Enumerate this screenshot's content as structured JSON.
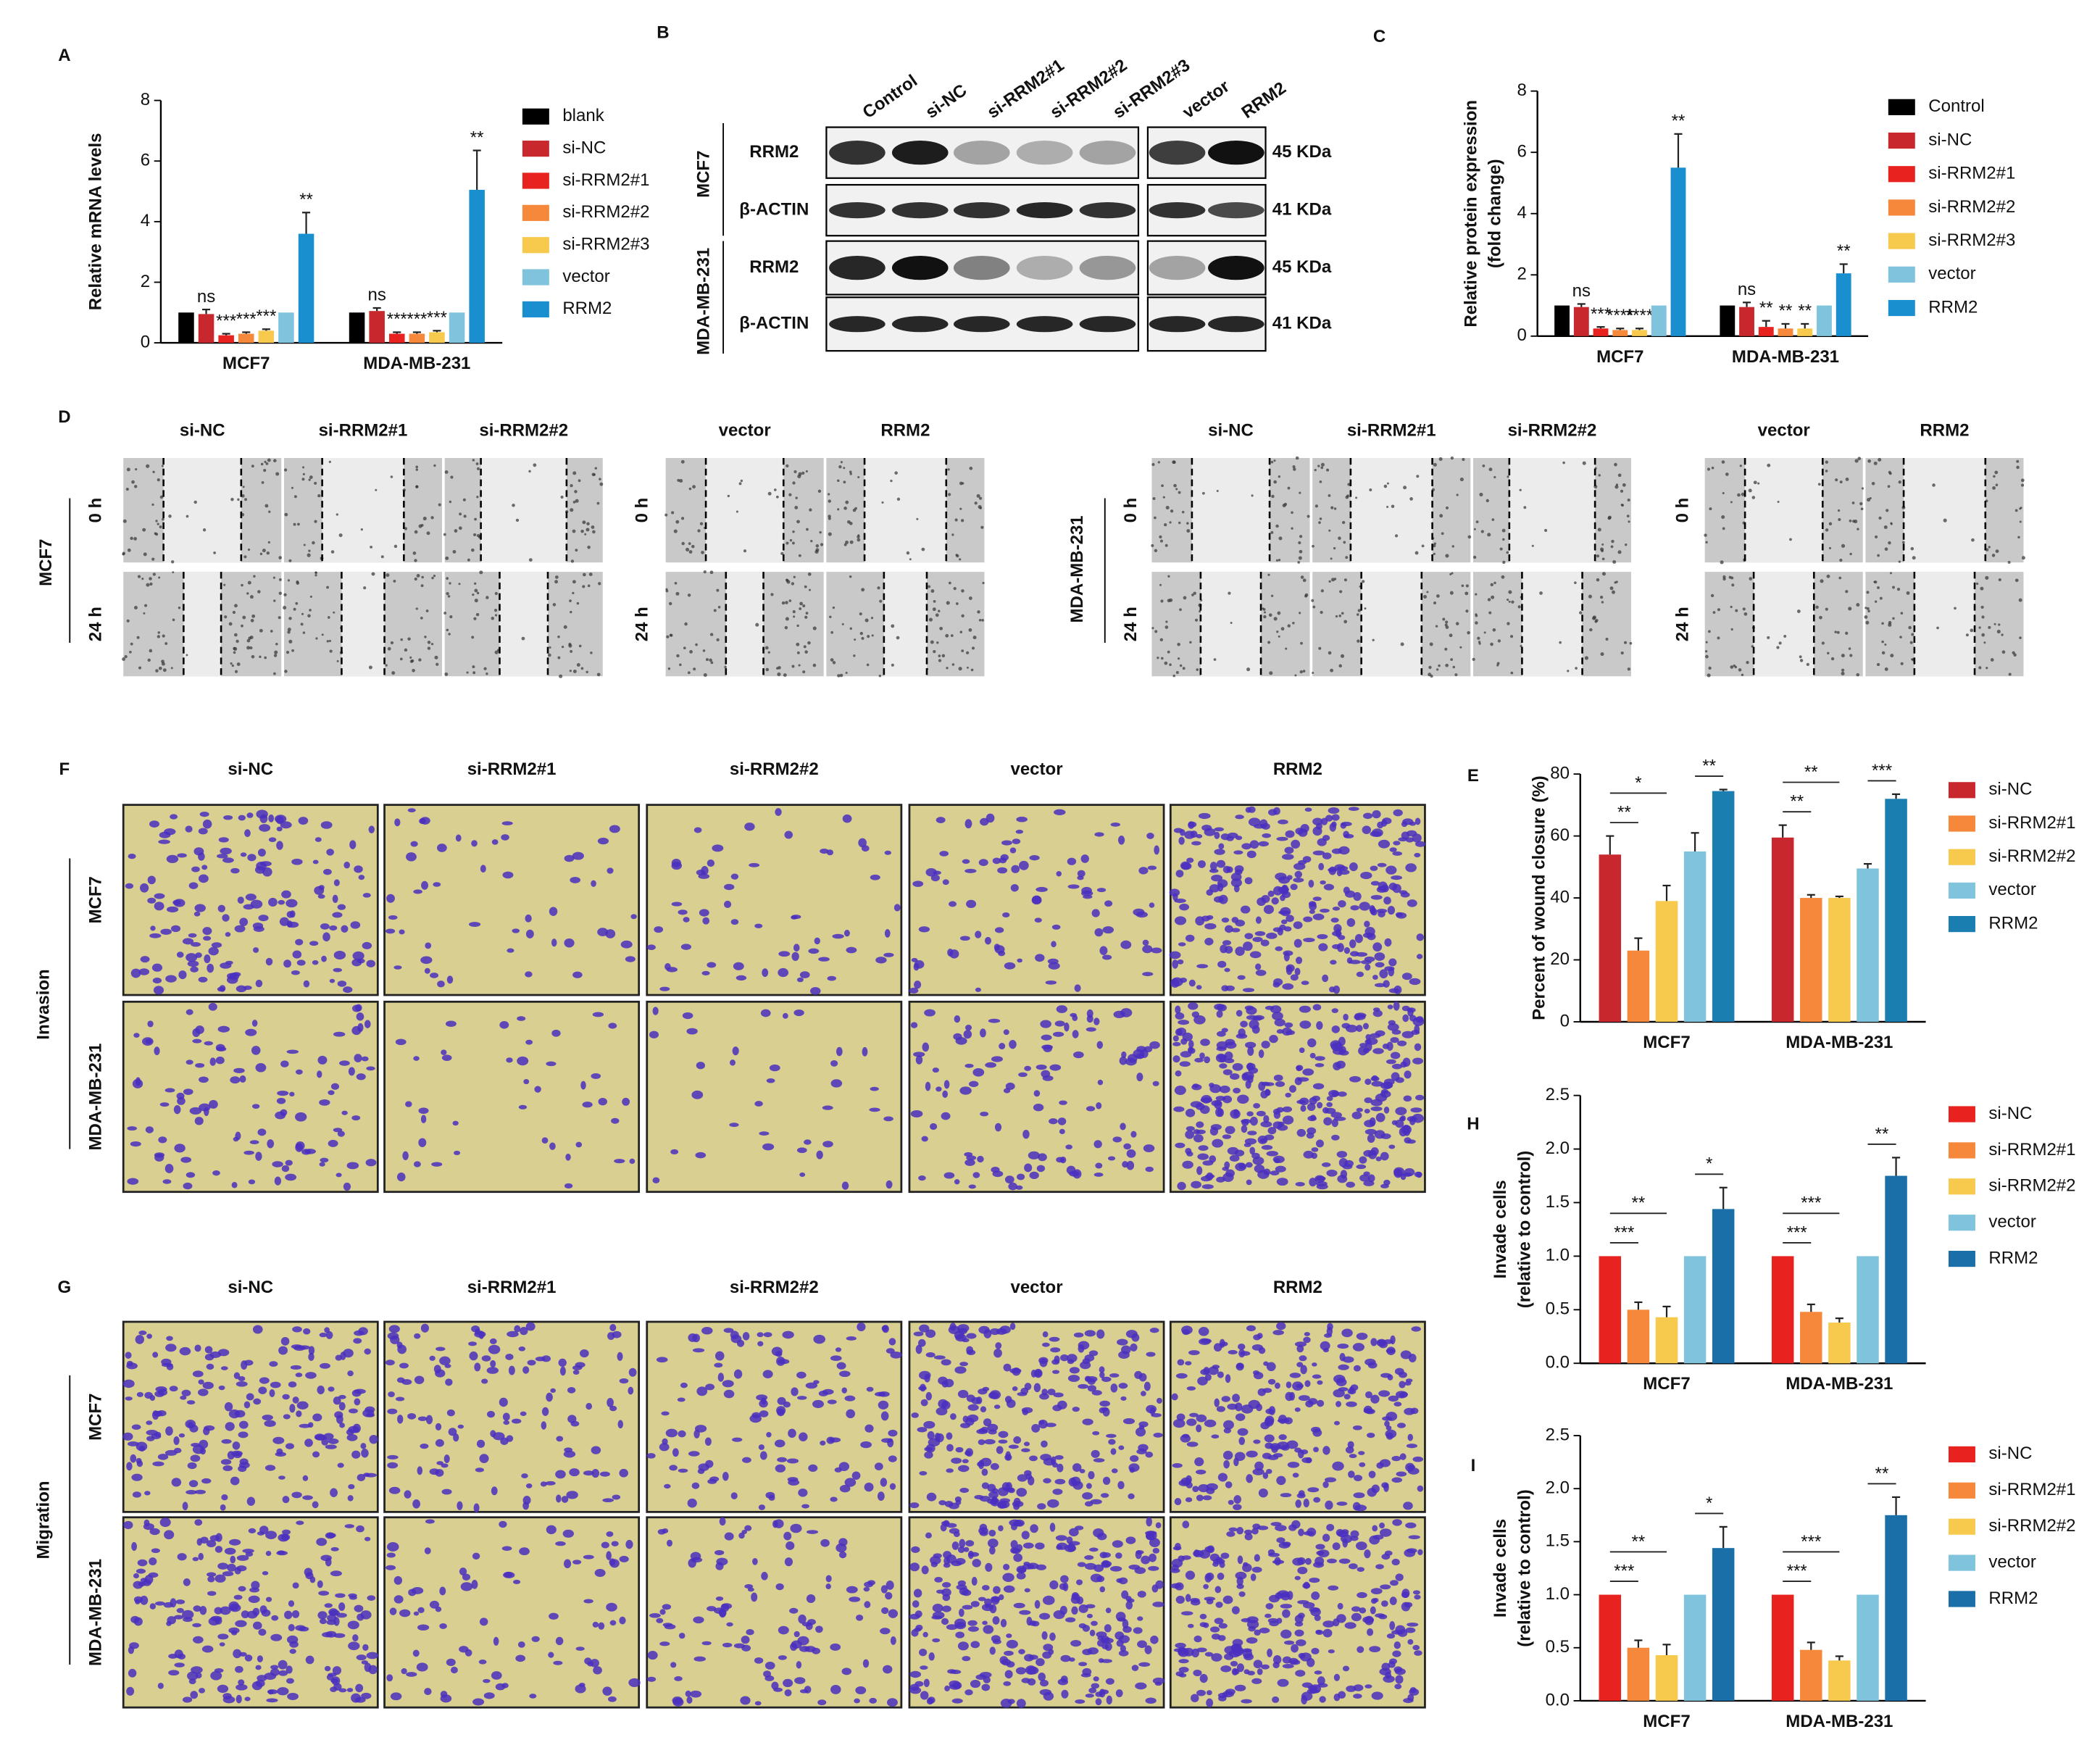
{
  "chart_data": [
    {
      "type": "bar",
      "panel": "A",
      "ylabel": "Relative mRNA levels",
      "categories": [
        "MCF7",
        "MDA-MB-231"
      ],
      "ylim": [
        0,
        8
      ],
      "yticks": [
        0,
        2,
        4,
        6,
        8
      ],
      "series": [
        {
          "name": "blank",
          "color": "#000000",
          "values": [
            1,
            1
          ],
          "errors": [
            0,
            0
          ],
          "annotations": [
            null,
            null
          ]
        },
        {
          "name": "si-NC",
          "color": "#c8282d",
          "values": [
            0.95,
            1.05
          ],
          "errors": [
            0.15,
            0.1
          ],
          "annotations": [
            "ns",
            "ns"
          ]
        },
        {
          "name": "si-RRM2#1",
          "color": "#e8231f",
          "values": [
            0.25,
            0.3
          ],
          "errors": [
            0.05,
            0.05
          ],
          "annotations": [
            "***",
            "***"
          ]
        },
        {
          "name": "si-RRM2#2",
          "color": "#f5883a",
          "values": [
            0.3,
            0.3
          ],
          "errors": [
            0.05,
            0.05
          ],
          "annotations": [
            "***",
            "***"
          ]
        },
        {
          "name": "si-RRM2#3",
          "color": "#f7c94c",
          "values": [
            0.4,
            0.35
          ],
          "errors": [
            0.05,
            0.05
          ],
          "annotations": [
            "***",
            "***"
          ]
        },
        {
          "name": "vector",
          "color": "#7fc4dc",
          "values": [
            1,
            1
          ],
          "errors": [
            0,
            0
          ],
          "annotations": [
            null,
            null
          ]
        },
        {
          "name": "RRM2",
          "color": "#1a8fd0",
          "values": [
            3.6,
            5.05
          ],
          "errors": [
            0.7,
            1.3
          ],
          "annotations": [
            "**",
            "**"
          ]
        }
      ]
    },
    {
      "type": "bar",
      "panel": "C",
      "ylabel": [
        "Relative protein expression",
        "(fold change)"
      ],
      "categories": [
        "MCF7",
        "MDA-MB-231"
      ],
      "ylim": [
        0,
        8
      ],
      "yticks": [
        0,
        2,
        4,
        6,
        8
      ],
      "series": [
        {
          "name": "Control",
          "color": "#000000",
          "values": [
            1,
            1
          ],
          "errors": [
            0,
            0
          ],
          "annotations": [
            null,
            null
          ]
        },
        {
          "name": "si-NC",
          "color": "#c8282d",
          "values": [
            0.95,
            0.95
          ],
          "errors": [
            0.1,
            0.15
          ],
          "annotations": [
            "ns",
            "ns"
          ]
        },
        {
          "name": "si-RRM2#1",
          "color": "#e8231f",
          "values": [
            0.25,
            0.3
          ],
          "errors": [
            0.05,
            0.2
          ],
          "annotations": [
            "***",
            "**"
          ]
        },
        {
          "name": "si-RRM2#2",
          "color": "#f5883a",
          "values": [
            0.2,
            0.25
          ],
          "errors": [
            0.05,
            0.15
          ],
          "annotations": [
            "****",
            "**"
          ]
        },
        {
          "name": "si-RRM2#3",
          "color": "#f7c94c",
          "values": [
            0.2,
            0.25
          ],
          "errors": [
            0.05,
            0.15
          ],
          "annotations": [
            "****",
            "**"
          ]
        },
        {
          "name": "vector",
          "color": "#7fc4dc",
          "values": [
            1,
            1
          ],
          "errors": [
            0,
            0
          ],
          "annotations": [
            null,
            null
          ]
        },
        {
          "name": "RRM2",
          "color": "#1a8fd0",
          "values": [
            5.5,
            2.05
          ],
          "errors": [
            1.1,
            0.3
          ],
          "annotations": [
            "**",
            "**"
          ]
        }
      ]
    },
    {
      "type": "bar",
      "panel": "E",
      "ylabel": "Percent of wound closure (%)",
      "categories": [
        "MCF7",
        "MDA-MB-231"
      ],
      "ylim": [
        0,
        80
      ],
      "yticks": [
        0,
        20,
        40,
        60,
        80
      ],
      "series": [
        {
          "name": "si-NC",
          "color": "#c8282d",
          "values": [
            54,
            59.5
          ],
          "errors": [
            6,
            4
          ]
        },
        {
          "name": "si-RRM2#1",
          "color": "#f5883a",
          "values": [
            23,
            40
          ],
          "errors": [
            4,
            1
          ]
        },
        {
          "name": "si-RRM2#2",
          "color": "#f7c94c",
          "values": [
            39,
            40
          ],
          "errors": [
            5,
            0.5
          ]
        },
        {
          "name": "vector",
          "color": "#7fc4dc",
          "values": [
            55,
            49.5
          ],
          "errors": [
            6,
            1.5
          ]
        },
        {
          "name": "RRM2",
          "color": "#1a7fb0",
          "values": [
            74.5,
            72
          ],
          "errors": [
            0.5,
            1.5
          ]
        }
      ],
      "comparisons": [
        {
          "category": "MCF7",
          "between": [
            "si-NC",
            "si-RRM2#1"
          ],
          "label": "**"
        },
        {
          "category": "MCF7",
          "between": [
            "si-NC",
            "si-RRM2#2"
          ],
          "label": "*"
        },
        {
          "category": "MCF7",
          "between": [
            "vector",
            "RRM2"
          ],
          "label": "**"
        },
        {
          "category": "MDA-MB-231",
          "between": [
            "si-NC",
            "si-RRM2#1"
          ],
          "label": "**"
        },
        {
          "category": "MDA-MB-231",
          "between": [
            "si-NC",
            "si-RRM2#2"
          ],
          "label": "**"
        },
        {
          "category": "MDA-MB-231",
          "between": [
            "vector",
            "RRM2"
          ],
          "label": "***"
        }
      ]
    },
    {
      "type": "bar",
      "panel": "H",
      "ylabel": [
        "Invade cells",
        "(relative to control)"
      ],
      "categories": [
        "MCF7",
        "MDA-MB-231"
      ],
      "ylim": [
        0,
        2.5
      ],
      "yticks": [
        {
          "value": 0,
          "label": "0.0"
        },
        0.5,
        {
          "value": 1,
          "label": "1.0"
        },
        1.5,
        {
          "value": 2,
          "label": "2.0"
        },
        2.5
      ],
      "series": [
        {
          "name": "si-NC",
          "color": "#e8231f",
          "values": [
            1,
            1
          ],
          "errors": [
            0,
            0
          ]
        },
        {
          "name": "si-RRM2#1",
          "color": "#f5883a",
          "values": [
            0.5,
            0.48
          ],
          "errors": [
            0.07,
            0.07
          ]
        },
        {
          "name": "si-RRM2#2",
          "color": "#f7c94c",
          "values": [
            0.43,
            0.38
          ],
          "errors": [
            0.1,
            0.04
          ]
        },
        {
          "name": "vector",
          "color": "#7fc4dc",
          "values": [
            1,
            1
          ],
          "errors": [
            0,
            0
          ]
        },
        {
          "name": "RRM2",
          "color": "#1a6fa8",
          "values": [
            1.44,
            1.75
          ],
          "errors": [
            0.2,
            0.17
          ]
        }
      ],
      "comparisons": [
        {
          "category": "MCF7",
          "between": [
            "si-NC",
            "si-RRM2#1"
          ],
          "label": "***"
        },
        {
          "category": "MCF7",
          "between": [
            "si-NC",
            "si-RRM2#2"
          ],
          "label": "**"
        },
        {
          "category": "MCF7",
          "between": [
            "vector",
            "RRM2"
          ],
          "label": "*"
        },
        {
          "category": "MDA-MB-231",
          "between": [
            "si-NC",
            "si-RRM2#1"
          ],
          "label": "***"
        },
        {
          "category": "MDA-MB-231",
          "between": [
            "si-NC",
            "si-RRM2#2"
          ],
          "label": "***"
        },
        {
          "category": "MDA-MB-231",
          "between": [
            "vector",
            "RRM2"
          ],
          "label": "**"
        }
      ]
    },
    {
      "type": "bar",
      "panel": "I",
      "ylabel": [
        "Invade cells",
        "(relative to control)"
      ],
      "categories": [
        "MCF7",
        "MDA-MB-231"
      ],
      "ylim": [
        0,
        2.5
      ],
      "yticks": [
        {
          "value": 0,
          "label": "0.0"
        },
        0.5,
        {
          "value": 1,
          "label": "1.0"
        },
        1.5,
        {
          "value": 2,
          "label": "2.0"
        },
        2.5
      ],
      "series": [
        {
          "name": "si-NC",
          "color": "#e8231f",
          "values": [
            1,
            1
          ],
          "errors": [
            0,
            0
          ]
        },
        {
          "name": "si-RRM2#1",
          "color": "#f5883a",
          "values": [
            0.5,
            0.48
          ],
          "errors": [
            0.07,
            0.07
          ]
        },
        {
          "name": "si-RRM2#2",
          "color": "#f7c94c",
          "values": [
            0.43,
            0.38
          ],
          "errors": [
            0.1,
            0.04
          ]
        },
        {
          "name": "vector",
          "color": "#7fc4dc",
          "values": [
            1,
            1
          ],
          "errors": [
            0,
            0
          ]
        },
        {
          "name": "RRM2",
          "color": "#1a6fa8",
          "values": [
            1.44,
            1.75
          ],
          "errors": [
            0.2,
            0.17
          ]
        }
      ],
      "comparisons": [
        {
          "category": "MCF7",
          "between": [
            "si-NC",
            "si-RRM2#1"
          ],
          "label": "***"
        },
        {
          "category": "MCF7",
          "between": [
            "si-NC",
            "si-RRM2#2"
          ],
          "label": "**"
        },
        {
          "category": "MCF7",
          "between": [
            "vector",
            "RRM2"
          ],
          "label": "*"
        },
        {
          "category": "MDA-MB-231",
          "between": [
            "si-NC",
            "si-RRM2#1"
          ],
          "label": "***"
        },
        {
          "category": "MDA-MB-231",
          "between": [
            "si-NC",
            "si-RRM2#2"
          ],
          "label": "***"
        },
        {
          "category": "MDA-MB-231",
          "between": [
            "vector",
            "RRM2"
          ],
          "label": "**"
        }
      ]
    }
  ],
  "blot": {
    "panel": "B",
    "lanes": [
      "Control",
      "si-NC",
      "si-RRM2#1",
      "si-RRM2#2",
      "si-RRM2#3",
      "vector",
      "RRM2"
    ],
    "cell_lines": [
      "MCF7",
      "MDA-MB-231"
    ],
    "rows": [
      {
        "label": "RRM2",
        "size": "45 KDa"
      },
      {
        "label": "β-ACTIN",
        "size": "41 KDa"
      },
      {
        "label": "RRM2",
        "size": "45 KDa"
      },
      {
        "label": "β-ACTIN",
        "size": "41 KDa"
      }
    ]
  },
  "wound": {
    "panel": "D",
    "times": [
      "0 h",
      "24 h"
    ],
    "blocks": [
      {
        "cell_line": "MCF7",
        "groups": [
          [
            "si-NC",
            "si-RRM2#1",
            "si-RRM2#2"
          ],
          [
            "vector",
            "RRM2"
          ]
        ]
      },
      {
        "cell_line": "MDA-MB-231",
        "groups": [
          [
            "si-NC",
            "si-RRM2#1",
            "si-RRM2#2"
          ],
          [
            "vector",
            "RRM2"
          ]
        ]
      }
    ]
  },
  "invasion": {
    "panel": "F",
    "title": "Invasion",
    "columns": [
      "si-NC",
      "si-RRM2#1",
      "si-RRM2#2",
      "vector",
      "RRM2"
    ],
    "rows": [
      "MCF7",
      "MDA-MB-231"
    ]
  },
  "migration": {
    "panel": "G",
    "title": "Migration",
    "columns": [
      "si-NC",
      "si-RRM2#1",
      "si-RRM2#2",
      "vector",
      "RRM2"
    ],
    "rows": [
      "MCF7",
      "MDA-MB-231"
    ]
  }
}
